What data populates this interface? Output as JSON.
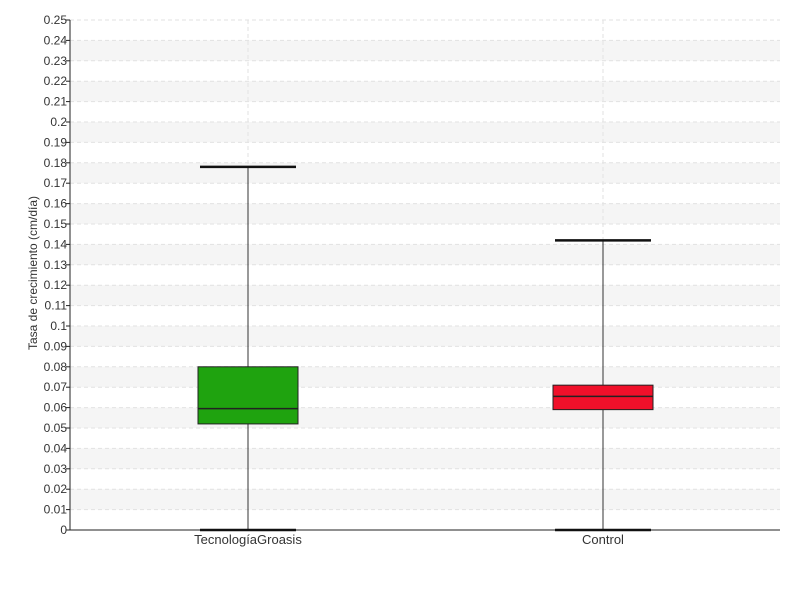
{
  "chart_data": {
    "type": "box",
    "title": "",
    "xlabel": "",
    "ylabel": "Tasa de crecimiento (cm/día)",
    "ylim": [
      0,
      0.25
    ],
    "yticks": [
      "0",
      "0.01",
      "0.02",
      "0.03",
      "0.04",
      "0.05",
      "0.06",
      "0.07",
      "0.08",
      "0.09",
      "0.1",
      "0.11",
      "0.12",
      "0.13",
      "0.14",
      "0.15",
      "0.16",
      "0.17",
      "0.18",
      "0.19",
      "0.2",
      "0.21",
      "0.22",
      "0.23",
      "0.24",
      "0.25"
    ],
    "ytick_values": [
      0,
      0.01,
      0.02,
      0.03,
      0.04,
      0.05,
      0.06,
      0.07,
      0.08,
      0.09,
      0.1,
      0.11,
      0.12,
      0.13,
      0.14,
      0.15,
      0.16,
      0.17,
      0.18,
      0.19,
      0.2,
      0.21,
      0.22,
      0.23,
      0.24,
      0.25
    ],
    "grid": true,
    "categories": [
      "TecnologíaGroasis",
      "Control"
    ],
    "boxes": [
      {
        "category": "TecnologíaGroasis",
        "min": 0.0,
        "q1": 0.052,
        "median": 0.0595,
        "q3": 0.08,
        "max": 0.178,
        "color": "#1FA30F"
      },
      {
        "category": "Control",
        "min": 0.0,
        "q1": 0.059,
        "median": 0.0655,
        "q3": 0.071,
        "max": 0.142,
        "color": "#F0102A"
      }
    ]
  }
}
